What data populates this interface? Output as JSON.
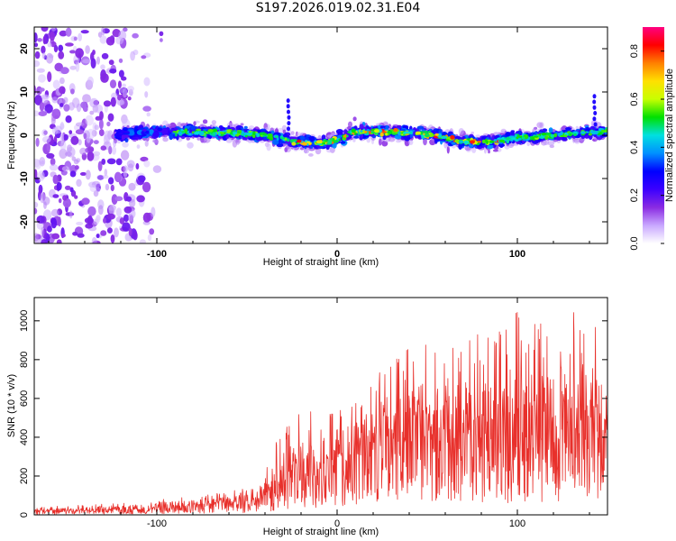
{
  "title": "S197.2026.019.02.31.E04",
  "chart_data": [
    {
      "type": "heatmap",
      "name": "spectrogram",
      "xlabel": "Height of straight line (km)",
      "ylabel": "Frequency (Hz)",
      "xlim": [
        -168,
        150
      ],
      "ylim": [
        -25,
        25
      ],
      "x_ticks": [
        -100,
        0,
        100
      ],
      "y_ticks": [
        -20,
        -10,
        0,
        10,
        20
      ],
      "colorbar": {
        "label": "Normalized spectral amplitude",
        "range": [
          0.0,
          0.9
        ],
        "ticks": [
          "0.0",
          "0.2",
          "0.4",
          "0.6",
          "0.8"
        ],
        "colors": [
          "#ffffff",
          "#c9a8ff",
          "#8a2be2",
          "#3b00ff",
          "#0000ff",
          "#0090ff",
          "#00e0e0",
          "#00e000",
          "#c8ff00",
          "#ffe000",
          "#ff8000",
          "#ff0000",
          "#ff0080"
        ]
      },
      "ridge_center": [
        [
          -168,
          0
        ],
        [
          -130,
          0
        ],
        [
          -100,
          0.8
        ],
        [
          -80,
          0.8
        ],
        [
          -60,
          0.5
        ],
        [
          -40,
          0.2
        ],
        [
          -25,
          -1.5
        ],
        [
          -10,
          -2
        ],
        [
          0,
          -1
        ],
        [
          10,
          0.8
        ],
        [
          25,
          0.8
        ],
        [
          40,
          0.5
        ],
        [
          55,
          0
        ],
        [
          70,
          -1.5
        ],
        [
          85,
          -1.5
        ],
        [
          100,
          -0.5
        ],
        [
          120,
          0
        ],
        [
          140,
          0.6
        ],
        [
          150,
          1
        ]
      ],
      "noise_region_end_km": -120
    },
    {
      "type": "line",
      "name": "snr",
      "xlabel": "Height of straight line (km)",
      "ylabel": "SNR (10 * v/v)",
      "xlim": [
        -168,
        150
      ],
      "ylim": [
        0,
        1120
      ],
      "x_ticks": [
        -100,
        0,
        100
      ],
      "y_ticks": [
        0,
        200,
        400,
        600,
        800,
        1000
      ],
      "color": "#e8302b",
      "envelope": {
        "x": [
          -168,
          -120,
          -100,
          -80,
          -60,
          -45,
          -40,
          -30,
          -20,
          -10,
          0,
          10,
          20,
          30,
          40,
          50,
          60,
          70,
          80,
          90,
          100,
          110,
          120,
          130,
          140,
          150
        ],
        "mean": [
          20,
          25,
          35,
          45,
          60,
          75,
          110,
          160,
          200,
          230,
          280,
          320,
          350,
          390,
          410,
          430,
          440,
          430,
          420,
          400,
          390,
          380,
          370,
          360,
          380,
          420
        ],
        "max": [
          40,
          60,
          90,
          100,
          120,
          150,
          250,
          450,
          560,
          520,
          580,
          600,
          720,
          820,
          860,
          900,
          870,
          880,
          960,
          1000,
          1080,
          1060,
          1120,
          1080,
          1020,
          860
        ]
      }
    }
  ]
}
